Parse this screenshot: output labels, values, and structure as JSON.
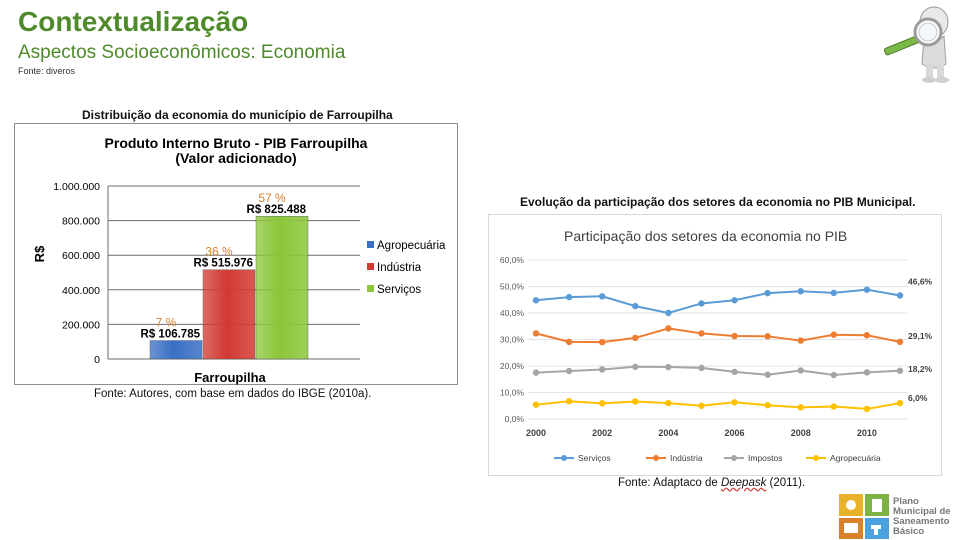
{
  "header": {
    "title": "Contextualização",
    "subtitle": "Aspectos Socioeconômicos: Economia",
    "source": "Fonte: diveros"
  },
  "left_figure": {
    "caption": "Distribuição da economia do município de Farroupilha",
    "source_note": "Fonte: Autores, com base em dados do IBGE (2010a)."
  },
  "right_figure": {
    "caption": "Evolução da participação dos setores da economia no PIB Municipal.",
    "source_prefix": "Fonte: Adaptaco de ",
    "source_author": "Deepask",
    "source_suffix": " (2011)."
  },
  "logo": {
    "line1": "Plano",
    "line2": "Municipal de",
    "line3": "Saneamento",
    "line4": "Básico"
  },
  "chart_data": [
    {
      "type": "bar",
      "title": "Produto Interno Bruto - PIB Farroupilha",
      "subtitle": "(Valor adicionado)",
      "xlabel": "Farroupilha",
      "ylabel": "R$",
      "ylim": [
        0,
        1000000
      ],
      "yticks": [
        "0",
        "200.000",
        "400.000",
        "600.000",
        "800.000",
        "1.000.000"
      ],
      "ytick_values": [
        0,
        200000,
        400000,
        600000,
        800000,
        1000000
      ],
      "series": [
        {
          "name": "Agropecuária",
          "value": 106785,
          "label": "R$ 106.785",
          "percent": "7 %",
          "color": "#3a6fc4"
        },
        {
          "name": "Indústria",
          "value": 515976,
          "label": "R$ 515.976",
          "percent": "36 %",
          "color": "#d23a33"
        },
        {
          "name": "Serviços",
          "value": 825488,
          "label": "R$ 825.488",
          "percent": "57 %",
          "color": "#8cc63a"
        }
      ],
      "legend_position": "right"
    },
    {
      "type": "line",
      "title": "Participação dos setores da economia no PIB",
      "x": [
        2000,
        2001,
        2002,
        2003,
        2004,
        2005,
        2006,
        2007,
        2008,
        2009,
        2010,
        2011
      ],
      "xticks": [
        "2000",
        "2002",
        "2004",
        "2006",
        "2008",
        "2010"
      ],
      "ylim": [
        0,
        60
      ],
      "yticks": [
        "0,0%",
        "10,0%",
        "20,0%",
        "30,0%",
        "40,0%",
        "50,0%",
        "60,0%"
      ],
      "series": [
        {
          "name": "Serviços",
          "color": "#5b9bd5",
          "end_label": "46,6%",
          "values": [
            44.8,
            46.0,
            46.3,
            42.6,
            40.0,
            43.6,
            44.8,
            47.5,
            48.2,
            47.6,
            48.8,
            46.6
          ]
        },
        {
          "name": "Indústria",
          "color": "#ed7d31",
          "end_label": "29,1%",
          "values": [
            32.3,
            29.1,
            29.0,
            30.6,
            34.2,
            32.3,
            31.3,
            31.2,
            29.6,
            31.8,
            31.6,
            29.1
          ]
        },
        {
          "name": "Impostos",
          "color": "#a5a5a5",
          "end_label": "18,2%",
          "values": [
            17.5,
            18.1,
            18.7,
            19.7,
            19.6,
            19.3,
            17.8,
            16.7,
            18.3,
            16.6,
            17.6,
            18.2
          ]
        },
        {
          "name": "Agropecuária",
          "color": "#ffc000",
          "end_label": "6,0%",
          "values": [
            5.4,
            6.7,
            5.9,
            6.6,
            6.0,
            5.0,
            6.3,
            5.2,
            4.4,
            4.7,
            3.8,
            6.0
          ]
        }
      ],
      "legend_position": "bottom"
    }
  ]
}
